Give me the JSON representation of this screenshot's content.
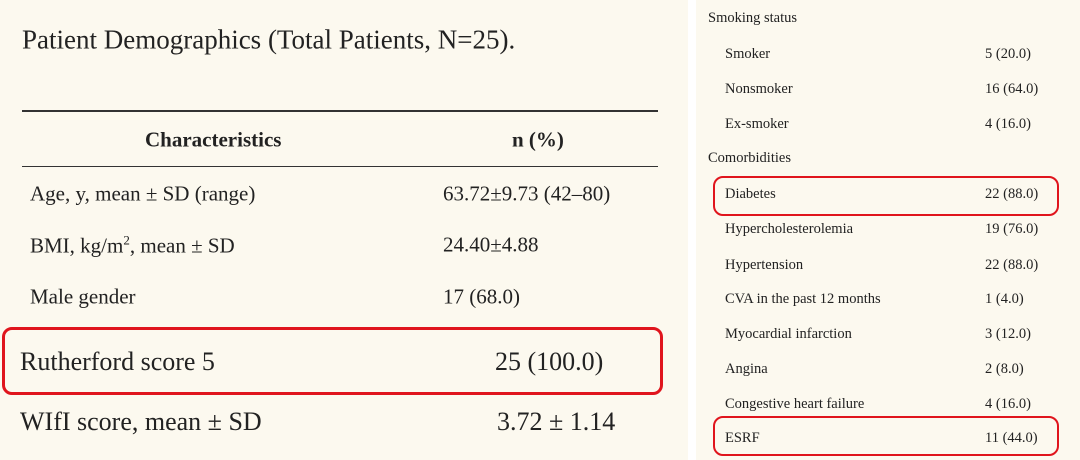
{
  "left": {
    "title": "Patient Demographics (Total Patients, N=25).",
    "table": {
      "header": [
        "Characteristics",
        "n (%)"
      ],
      "rows": [
        {
          "label": "Age, y, mean ± SD (range)",
          "value": "63.72±9.73 (42–80)"
        },
        {
          "label_parts": [
            "BMI, kg/m",
            "2",
            ", mean ± SD"
          ],
          "value": "24.40±4.88"
        },
        {
          "label": "Male gender",
          "value": "17 (68.0)"
        },
        {
          "label": "Rutherford score 5",
          "value": "25 (100.0)"
        },
        {
          "label": "WIfI score, mean ± SD",
          "value": "3.72 ± 1.14"
        }
      ]
    }
  },
  "right": {
    "sections": [
      {
        "heading": "Smoking status",
        "rows": [
          [
            "Smoker",
            "5 (20.0)"
          ],
          [
            "Nonsmoker",
            "16 (64.0)"
          ],
          [
            "Ex-smoker",
            "4 (16.0)"
          ]
        ]
      },
      {
        "heading": "Comorbidities",
        "rows": [
          [
            "Diabetes",
            "22 (88.0)"
          ],
          [
            "Hypercholesterolemia",
            "19 (76.0)"
          ],
          [
            "Hypertension",
            "22 (88.0)"
          ],
          [
            "CVA in the past 12 months",
            "1 (4.0)"
          ],
          [
            "Myocardial infarction",
            "3 (12.0)"
          ],
          [
            "Angina",
            "2 (8.0)"
          ],
          [
            "Congestive heart failure",
            "4 (16.0)"
          ],
          [
            "ESRF",
            "11 (44.0)"
          ]
        ]
      }
    ]
  }
}
